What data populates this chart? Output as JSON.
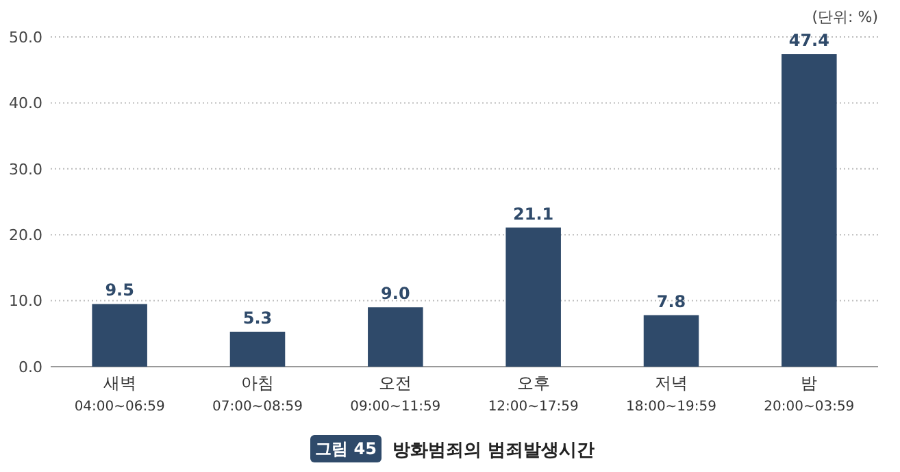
{
  "chart_data": {
    "type": "bar",
    "title": "방화범죄의 범죄발생시간",
    "categories": [
      "새벽\n04:00~06:59",
      "아침\n07:00~08:59",
      "오전\n09:00~11:59",
      "오후\n12:00~17:59",
      "저녁\n18:00~19:59",
      "밤\n20:00~03:59"
    ],
    "values": [
      9.5,
      5.3,
      9.0,
      21.1,
      7.8,
      47.4
    ],
    "value_labels": [
      "9.5",
      "5.3",
      "9.0",
      "21.1",
      "7.8",
      "47.4"
    ],
    "color": "#2f4a6a",
    "ylim": [
      0,
      50
    ],
    "yticks": [
      {
        "value": 0,
        "label": "0.0"
      },
      {
        "value": 10,
        "label": "10.0"
      },
      {
        "value": 20,
        "label": "20.0"
      },
      {
        "value": 30,
        "label": "30.0"
      },
      {
        "value": 40,
        "label": "40.0"
      },
      {
        "value": 50,
        "label": "50.0"
      }
    ],
    "grid": "y",
    "annotations": [
      "(단위: %)",
      "그림 45"
    ]
  }
}
